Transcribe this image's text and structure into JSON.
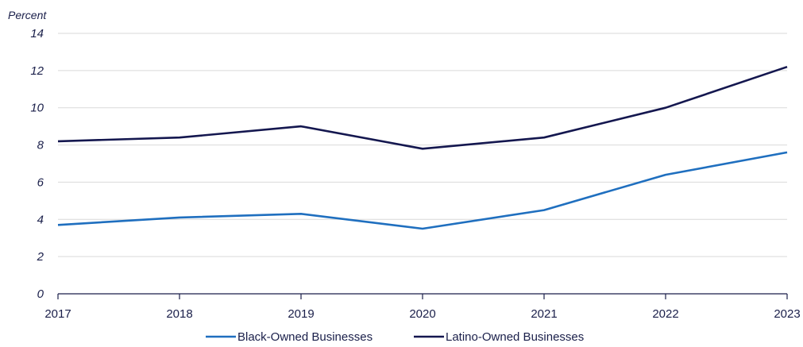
{
  "chart_data": {
    "type": "line",
    "title": "",
    "ylabel": "Percent",
    "xlabel": "",
    "x": [
      "2017",
      "2018",
      "2019",
      "2020",
      "2021",
      "2022",
      "2023"
    ],
    "ylim": [
      0,
      14
    ],
    "yticks": [
      "0",
      "2",
      "4",
      "6",
      "8",
      "10",
      "12",
      "14"
    ],
    "grid": "horizontal",
    "legend_position": "bottom",
    "series": [
      {
        "name": "Black-Owned Businesses",
        "color": "#1f6fbf",
        "values": [
          3.7,
          4.1,
          4.3,
          3.5,
          4.5,
          6.4,
          7.6
        ]
      },
      {
        "name": "Latino-Owned Businesses",
        "color": "#14174f",
        "values": [
          8.2,
          8.4,
          9.0,
          7.8,
          8.4,
          10.0,
          12.2
        ]
      }
    ]
  },
  "colors": {
    "axis": "#1a1f4a",
    "grid": "#d9d9d9"
  }
}
